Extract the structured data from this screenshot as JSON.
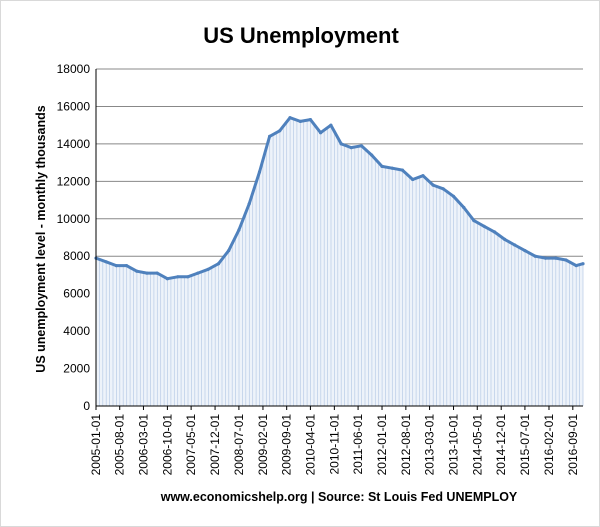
{
  "chart_data": {
    "type": "area",
    "title": "US Unemployment",
    "ylabel": "US unemployment level - monthly thousands",
    "source": "www.economicshelp.org | Source: St Louis Fed UNEMPLOY",
    "ylim": [
      0,
      18000
    ],
    "yticks": [
      0,
      2000,
      4000,
      6000,
      8000,
      10000,
      12000,
      14000,
      16000,
      18000
    ],
    "xtick_labels": [
      "2005-01-01",
      "2005-08-01",
      "2006-03-01",
      "2006-10-01",
      "2007-05-01",
      "2007-12-01",
      "2008-07-01",
      "2009-02-01",
      "2009-09-01",
      "2010-04-01",
      "2010-11-01",
      "2011-06-01",
      "2012-01-01",
      "2012-08-01",
      "2013-03-01",
      "2013-10-01",
      "2014-05-01",
      "2014-12-01",
      "2015-07-01",
      "2016-02-01",
      "2016-09-01"
    ],
    "x_start": "2005-01-01",
    "x_end": "2016-12-01",
    "x": [
      "2005-01-01",
      "2005-04-01",
      "2005-07-01",
      "2005-10-01",
      "2006-01-01",
      "2006-04-01",
      "2006-07-01",
      "2006-10-01",
      "2007-01-01",
      "2007-04-01",
      "2007-07-01",
      "2007-10-01",
      "2008-01-01",
      "2008-04-01",
      "2008-07-01",
      "2008-10-01",
      "2009-01-01",
      "2009-04-01",
      "2009-07-01",
      "2009-10-01",
      "2010-01-01",
      "2010-04-01",
      "2010-07-01",
      "2010-10-01",
      "2011-01-01",
      "2011-04-01",
      "2011-07-01",
      "2011-10-01",
      "2012-01-01",
      "2012-04-01",
      "2012-07-01",
      "2012-10-01",
      "2013-01-01",
      "2013-04-01",
      "2013-07-01",
      "2013-10-01",
      "2014-01-01",
      "2014-04-01",
      "2014-07-01",
      "2014-10-01",
      "2015-01-01",
      "2015-04-01",
      "2015-07-01",
      "2015-10-01",
      "2016-01-01",
      "2016-04-01",
      "2016-07-01",
      "2016-10-01",
      "2016-12-01"
    ],
    "values": [
      7900,
      7700,
      7500,
      7500,
      7200,
      7100,
      7100,
      6800,
      6900,
      6900,
      7100,
      7300,
      7600,
      8300,
      9400,
      10800,
      12500,
      14400,
      14700,
      15400,
      15200,
      15300,
      14600,
      15000,
      14000,
      13800,
      13900,
      13400,
      12800,
      12700,
      12600,
      12100,
      12300,
      11800,
      11600,
      11200,
      10600,
      9900,
      9600,
      9300,
      8900,
      8600,
      8300,
      8000,
      7900,
      7900,
      7800,
      7500,
      7600
    ],
    "grid": "horizontal",
    "colors": {
      "line": "#4f81bd",
      "fill": "#dbe5f4",
      "grid": "#888888"
    }
  }
}
